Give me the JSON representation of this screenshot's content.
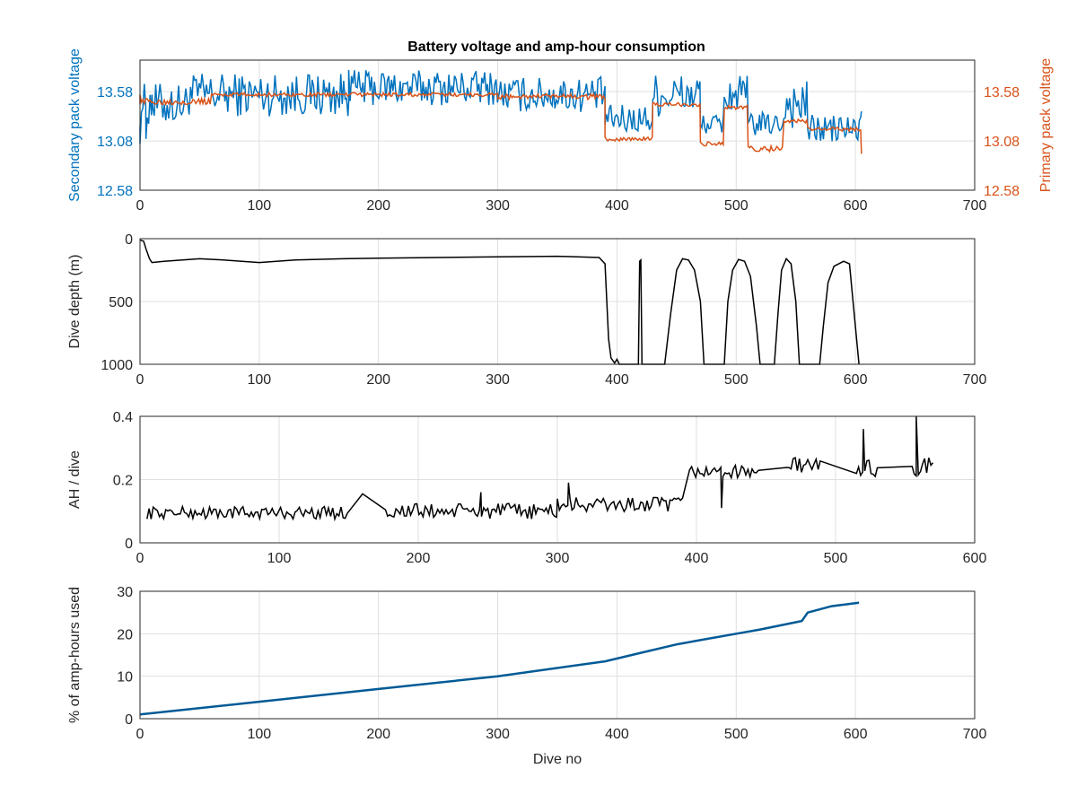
{
  "figure": {
    "title": "Battery voltage and amp-hour consumption",
    "colors": {
      "blue": "#0072bd",
      "orange": "#d95319",
      "black": "#000000",
      "line_blue": "#005a96"
    }
  },
  "chart_data": [
    {
      "type": "line",
      "title": "Battery voltage and amp-hour consumption",
      "xlabel": "",
      "ylabel": "Secondary pack voltage",
      "ylabel_right": "Primary pack voltage",
      "xlim": [
        0,
        700
      ],
      "xticks": [
        "0",
        "100",
        "200",
        "300",
        "400",
        "500",
        "600",
        "700"
      ],
      "ylim": [
        12.58,
        13.9
      ],
      "yticks": [
        "12.58",
        "13.08",
        "13.58"
      ],
      "ylim_right": [
        12.58,
        13.9
      ],
      "yticks_right": [
        "12.58",
        "13.08",
        "13.58"
      ],
      "grid": true,
      "series": [
        {
          "axis": "left",
          "color": "#0072bd",
          "segments": [
            {
              "x0": 0,
              "x1": 40,
              "base": 13.45,
              "amp": 0.22
            },
            {
              "x0": 40,
              "x1": 175,
              "base": 13.55,
              "amp": 0.22
            },
            {
              "x0": 175,
              "x1": 300,
              "base": 13.62,
              "amp": 0.18
            },
            {
              "x0": 300,
              "x1": 390,
              "base": 13.55,
              "amp": 0.18
            },
            {
              "x0": 390,
              "x1": 430,
              "base": 13.3,
              "amp": 0.15
            },
            {
              "x0": 430,
              "x1": 470,
              "base": 13.55,
              "amp": 0.22
            },
            {
              "x0": 470,
              "x1": 490,
              "base": 13.25,
              "amp": 0.1
            },
            {
              "x0": 490,
              "x1": 510,
              "base": 13.55,
              "amp": 0.2
            },
            {
              "x0": 510,
              "x1": 540,
              "base": 13.25,
              "amp": 0.12
            },
            {
              "x0": 540,
              "x1": 560,
              "base": 13.45,
              "amp": 0.25
            },
            {
              "x0": 560,
              "x1": 605,
              "base": 13.2,
              "amp": 0.15
            }
          ],
          "points": [
            [
              0,
              13.05
            ],
            [
              5,
              13.1
            ],
            [
              10,
              13.55
            ],
            [
              175,
              13.8
            ],
            [
              605,
              13.38
            ]
          ]
        },
        {
          "axis": "right",
          "color": "#d95319",
          "segments": [
            {
              "x0": 0,
              "x1": 60,
              "base": 13.48,
              "amp": 0.03
            },
            {
              "x0": 60,
              "x1": 300,
              "base": 13.55,
              "amp": 0.02
            },
            {
              "x0": 300,
              "x1": 390,
              "base": 13.53,
              "amp": 0.03
            },
            {
              "x0": 390,
              "x1": 430,
              "base": 13.1,
              "amp": 0.02
            },
            {
              "x0": 430,
              "x1": 470,
              "base": 13.45,
              "amp": 0.02
            },
            {
              "x0": 470,
              "x1": 490,
              "base": 13.05,
              "amp": 0.02
            },
            {
              "x0": 490,
              "x1": 510,
              "base": 13.42,
              "amp": 0.02
            },
            {
              "x0": 510,
              "x1": 540,
              "base": 13.0,
              "amp": 0.03
            },
            {
              "x0": 540,
              "x1": 560,
              "base": 13.28,
              "amp": 0.02
            },
            {
              "x0": 560,
              "x1": 605,
              "base": 13.2,
              "amp": 0.02
            }
          ],
          "points": [
            [
              0,
              13.55
            ],
            [
              605,
              12.95
            ]
          ]
        }
      ]
    },
    {
      "type": "line",
      "xlabel": "",
      "ylabel": "Dive depth (m)",
      "xlim": [
        0,
        700
      ],
      "xticks": [
        "0",
        "100",
        "200",
        "300",
        "400",
        "500",
        "600",
        "700"
      ],
      "ylim": [
        1000,
        0
      ],
      "yticks": [
        "0",
        "500",
        "1000"
      ],
      "reversed_y": true,
      "grid": true,
      "series": [
        {
          "color": "#000000",
          "points": [
            [
              0,
              10
            ],
            [
              3,
              20
            ],
            [
              5,
              80
            ],
            [
              8,
              160
            ],
            [
              10,
              190
            ],
            [
              20,
              180
            ],
            [
              50,
              160
            ],
            [
              70,
              170
            ],
            [
              100,
              190
            ],
            [
              130,
              170
            ],
            [
              170,
              160
            ],
            [
              200,
              155
            ],
            [
              250,
              150
            ],
            [
              300,
              145
            ],
            [
              350,
              140
            ],
            [
              385,
              150
            ],
            [
              390,
              200
            ],
            [
              393,
              800
            ],
            [
              395,
              950
            ],
            [
              398,
              990
            ],
            [
              400,
              960
            ],
            [
              402,
              1000
            ],
            [
              418,
              1000
            ],
            [
              419,
              180
            ],
            [
              420,
              170
            ],
            [
              421,
              1000
            ],
            [
              440,
              1000
            ],
            [
              445,
              600
            ],
            [
              450,
              250
            ],
            [
              455,
              160
            ],
            [
              460,
              170
            ],
            [
              465,
              250
            ],
            [
              470,
              500
            ],
            [
              473,
              1000
            ],
            [
              490,
              1000
            ],
            [
              493,
              500
            ],
            [
              497,
              250
            ],
            [
              502,
              165
            ],
            [
              507,
              180
            ],
            [
              512,
              300
            ],
            [
              517,
              700
            ],
            [
              520,
              1000
            ],
            [
              532,
              1000
            ],
            [
              535,
              600
            ],
            [
              538,
              250
            ],
            [
              542,
              160
            ],
            [
              546,
              200
            ],
            [
              550,
              500
            ],
            [
              553,
              1000
            ],
            [
              570,
              1000
            ],
            [
              573,
              700
            ],
            [
              577,
              350
            ],
            [
              582,
              220
            ],
            [
              590,
              180
            ],
            [
              595,
              200
            ],
            [
              600,
              700
            ],
            [
              603,
              1000
            ]
          ]
        }
      ]
    },
    {
      "type": "line",
      "xlabel": "",
      "ylabel": "AH / dive",
      "xlim": [
        0,
        600
      ],
      "xticks": [
        "0",
        "100",
        "200",
        "300",
        "400",
        "500",
        "600"
      ],
      "ylim": [
        0,
        0.4
      ],
      "yticks": [
        "0",
        "0.2",
        "0.4"
      ],
      "grid": true,
      "series": [
        {
          "color": "#000000",
          "segments": [
            {
              "x0": 5,
              "x1": 150,
              "base": 0.095,
              "amp": 0.02
            },
            {
              "x0": 175,
              "x1": 300,
              "base": 0.1,
              "amp": 0.025
            },
            {
              "x0": 300,
              "x1": 390,
              "base": 0.12,
              "amp": 0.025
            },
            {
              "x0": 395,
              "x1": 445,
              "base": 0.225,
              "amp": 0.02
            },
            {
              "x0": 465,
              "x1": 490,
              "base": 0.245,
              "amp": 0.025
            },
            {
              "x0": 515,
              "x1": 530,
              "base": 0.235,
              "amp": 0.03
            },
            {
              "x0": 555,
              "x1": 570,
              "base": 0.235,
              "amp": 0.035
            }
          ],
          "points": [
            [
              160,
              0.155
            ],
            [
              245,
              0.16
            ],
            [
              308,
              0.19
            ],
            [
              410,
              0.22
            ],
            [
              418,
              0.11
            ],
            [
              520,
              0.36
            ],
            [
              558,
              0.4
            ]
          ]
        }
      ]
    },
    {
      "type": "line",
      "xlabel": "Dive no",
      "ylabel": "% of amp-hours used",
      "xlim": [
        0,
        700
      ],
      "xticks": [
        "0",
        "100",
        "200",
        "300",
        "400",
        "500",
        "600",
        "700"
      ],
      "ylim": [
        0,
        30
      ],
      "yticks": [
        "0",
        "10",
        "20",
        "30"
      ],
      "grid": true,
      "series": [
        {
          "color": "#005a96",
          "points": [
            [
              0,
              1.0
            ],
            [
              100,
              4.0
            ],
            [
              200,
              7.0
            ],
            [
              300,
              10.0
            ],
            [
              390,
              13.5
            ],
            [
              420,
              15.5
            ],
            [
              450,
              17.5
            ],
            [
              470,
              18.5
            ],
            [
              500,
              20.0
            ],
            [
              520,
              21.0
            ],
            [
              555,
              23.0
            ],
            [
              560,
              25.0
            ],
            [
              580,
              26.5
            ],
            [
              603,
              27.3
            ]
          ]
        }
      ]
    }
  ]
}
